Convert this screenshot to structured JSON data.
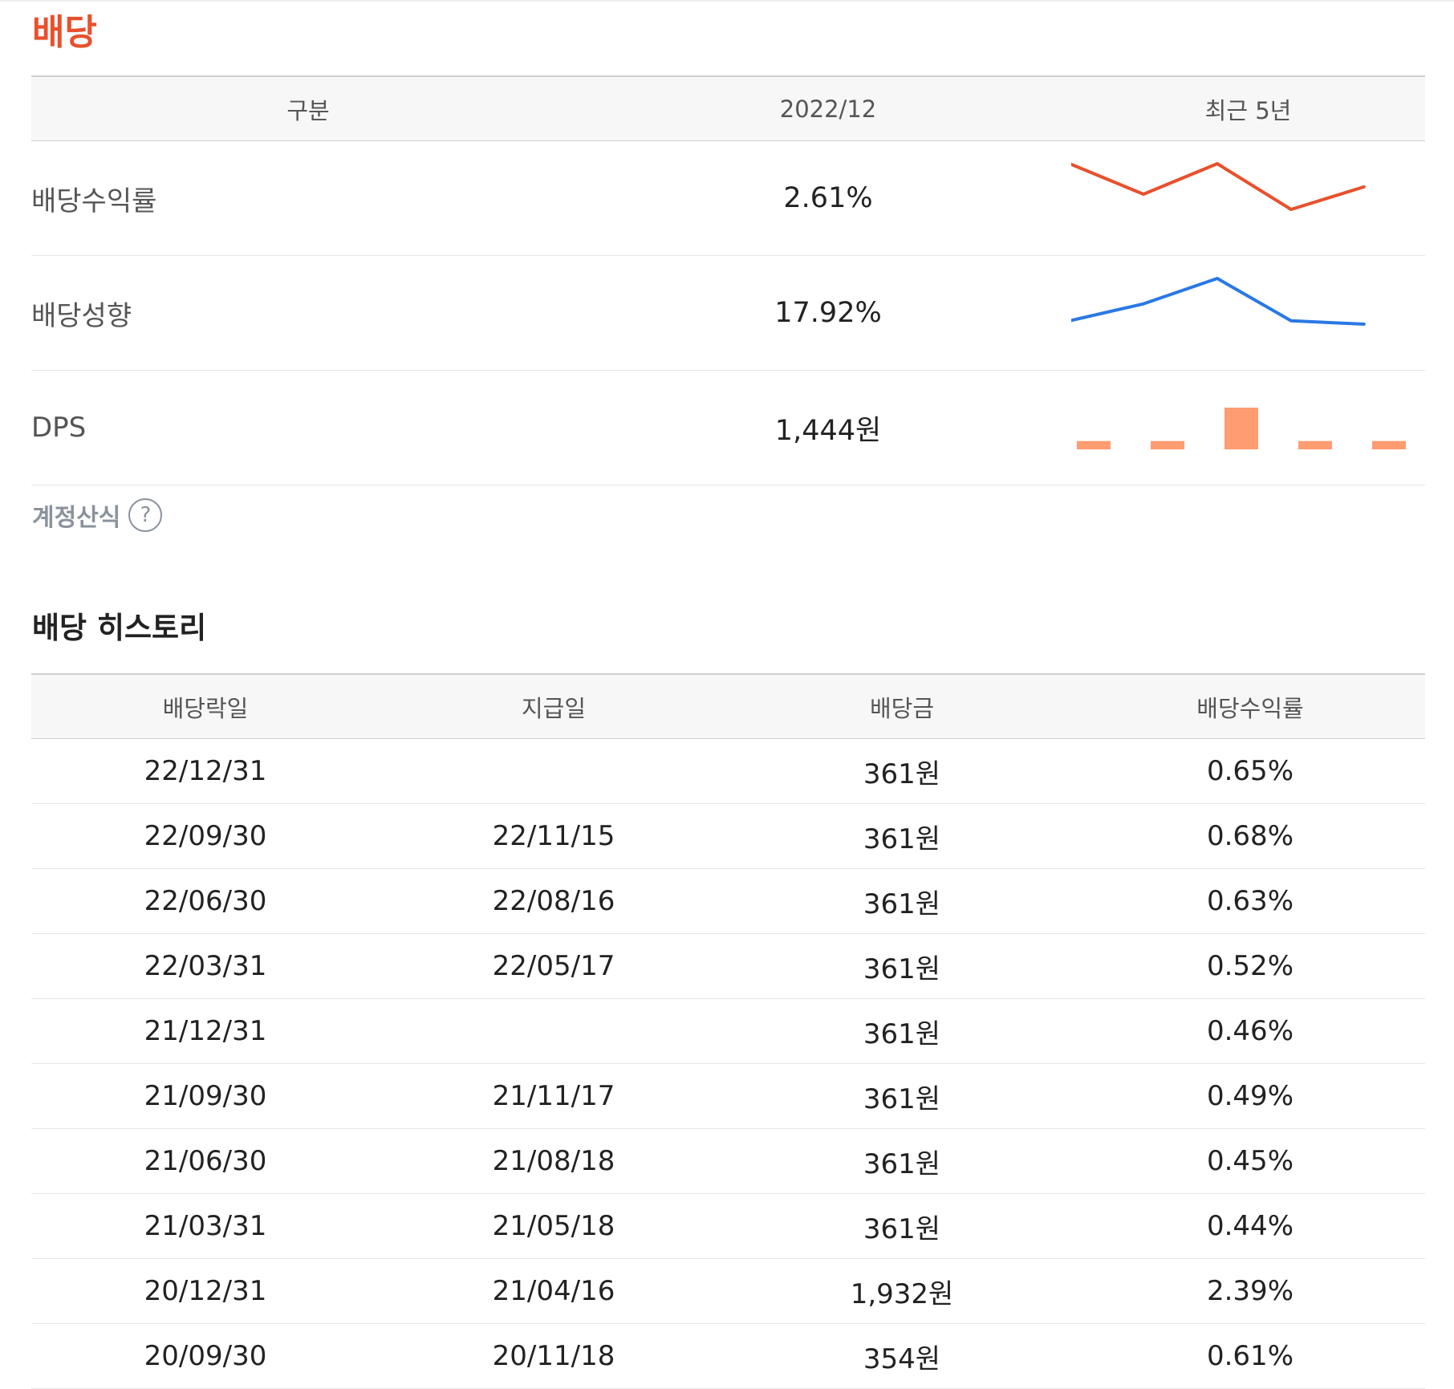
{
  "section_title": "배당",
  "colors": {
    "accent": "#e8502c",
    "yield_line": "#e8502c",
    "payout_line": "#2a78e4",
    "dps_bar": "#ff9c72",
    "muted_text": "#8a929c"
  },
  "summary": {
    "headers": [
      "구분",
      "2022/12",
      "최근 5년"
    ],
    "rows": [
      {
        "label": "배당수익률",
        "value": "2.61%",
        "spark_type": "line",
        "spark_color": "#e8502c",
        "spark_values": [
          5,
          3,
          5,
          2,
          3.5
        ]
      },
      {
        "label": "배당성향",
        "value": "17.92%",
        "spark_type": "line",
        "spark_color": "#2a78e4",
        "spark_values": [
          2,
          3,
          4.5,
          2,
          1.8
        ]
      },
      {
        "label": "DPS",
        "value": "1,444원",
        "spark_type": "bar",
        "spark_color": "#ff9c72",
        "spark_values": [
          1,
          1,
          5,
          1,
          1
        ]
      }
    ]
  },
  "account_note": {
    "label": "계정산식",
    "icon": "question-circle-icon",
    "icon_glyph": "?"
  },
  "history": {
    "title": "배당 히스토리",
    "headers": [
      "배당락일",
      "지급일",
      "배당금",
      "배당수익률"
    ],
    "rows": [
      [
        "22/12/31",
        "",
        "361원",
        "0.65%"
      ],
      [
        "22/09/30",
        "22/11/15",
        "361원",
        "0.68%"
      ],
      [
        "22/06/30",
        "22/08/16",
        "361원",
        "0.63%"
      ],
      [
        "22/03/31",
        "22/05/17",
        "361원",
        "0.52%"
      ],
      [
        "21/12/31",
        "",
        "361원",
        "0.46%"
      ],
      [
        "21/09/30",
        "21/11/17",
        "361원",
        "0.49%"
      ],
      [
        "21/06/30",
        "21/08/18",
        "361원",
        "0.45%"
      ],
      [
        "21/03/31",
        "21/05/18",
        "361원",
        "0.44%"
      ],
      [
        "20/12/31",
        "21/04/16",
        "1,932원",
        "2.39%"
      ],
      [
        "20/09/30",
        "20/11/18",
        "354원",
        "0.61%"
      ]
    ]
  }
}
